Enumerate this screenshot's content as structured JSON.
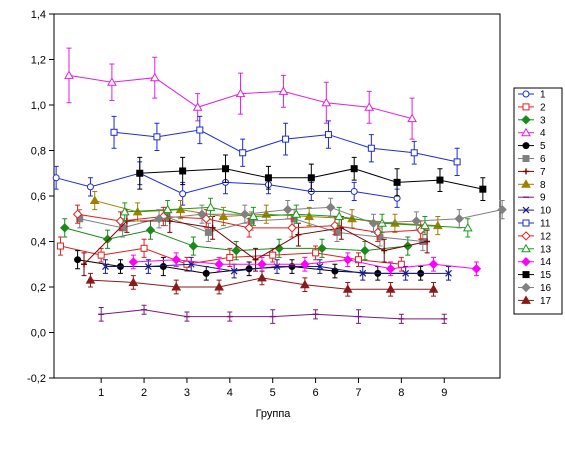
{
  "chart_data": {
    "type": "line",
    "title": "",
    "xlabel": "Группа",
    "ylabel": "",
    "xlim": [
      -0.1,
      10.3
    ],
    "ylim": [
      -0.2,
      1.4
    ],
    "xticks": [
      1,
      2,
      3,
      4,
      5,
      6,
      7,
      8,
      9
    ],
    "yticks": [
      -0.2,
      0.0,
      0.2,
      0.4,
      0.6,
      0.8,
      1.0,
      1.2,
      1.4
    ],
    "ytick_labels": [
      "-0,2",
      "0,0",
      "0,2",
      "0,4",
      "0,6",
      "0,8",
      "1,0",
      "1,2",
      "1,4"
    ],
    "grid": false,
    "error_bars": true,
    "legend_position": "right",
    "series": [
      {
        "name": "1",
        "color": "#1f2bd4",
        "marker": "circle-open",
        "x": [
          -0.05,
          0.75,
          1.9,
          2.9,
          3.9,
          4.9,
          5.9,
          6.9,
          7.9
        ],
        "y": [
          0.68,
          0.64,
          0.7,
          0.61,
          0.66,
          0.65,
          0.62,
          0.62,
          0.59
        ],
        "err": [
          0.05,
          0.04,
          0.05,
          0.05,
          0.05,
          0.04,
          0.04,
          0.04,
          0.04
        ]
      },
      {
        "name": "2",
        "color": "#e02020",
        "marker": "square-open",
        "x": [
          0.05,
          1.0,
          2.0,
          3.0,
          4.0,
          5.0,
          6.0,
          7.0,
          8.0
        ],
        "y": [
          0.38,
          0.34,
          0.37,
          0.3,
          0.33,
          0.34,
          0.35,
          0.32,
          0.3
        ],
        "err": [
          0.04,
          0.03,
          0.04,
          0.03,
          0.04,
          0.03,
          0.03,
          0.03,
          0.03
        ]
      },
      {
        "name": "3",
        "color": "#1a8a1a",
        "marker": "diamond",
        "x": [
          0.15,
          1.15,
          2.15,
          3.15,
          4.15,
          5.15,
          6.15,
          7.15,
          8.15
        ],
        "y": [
          0.46,
          0.41,
          0.45,
          0.38,
          0.36,
          0.37,
          0.37,
          0.36,
          0.38
        ],
        "err": [
          0.04,
          0.04,
          0.04,
          0.04,
          0.04,
          0.04,
          0.04,
          0.04,
          0.04
        ]
      },
      {
        "name": "4",
        "color": "#e020e0",
        "marker": "triangle-open",
        "x": [
          0.25,
          1.25,
          2.25,
          3.25,
          4.25,
          5.25,
          6.25,
          7.25,
          8.25
        ],
        "y": [
          1.13,
          1.1,
          1.12,
          0.99,
          1.05,
          1.06,
          1.01,
          0.99,
          0.94
        ],
        "err": [
          0.12,
          0.08,
          0.09,
          0.06,
          0.09,
          0.07,
          0.09,
          0.07,
          0.09
        ]
      },
      {
        "name": "5",
        "color": "#000000",
        "marker": "circle",
        "x": [
          0.45,
          1.45,
          2.45,
          3.45,
          4.45,
          5.45,
          6.45,
          7.45,
          8.45
        ],
        "y": [
          0.32,
          0.29,
          0.29,
          0.26,
          0.28,
          0.29,
          0.27,
          0.26,
          0.26
        ],
        "err": [
          0.04,
          0.03,
          0.04,
          0.03,
          0.03,
          0.03,
          0.03,
          0.03,
          0.03
        ]
      },
      {
        "name": "6",
        "color": "#808080",
        "marker": "square",
        "x": [
          0.5,
          1.5,
          2.5,
          3.5,
          4.5,
          5.5,
          6.5,
          7.5,
          8.5
        ],
        "y": [
          0.5,
          0.46,
          0.51,
          0.44,
          0.49,
          0.5,
          0.44,
          0.42,
          0.4
        ],
        "err": [
          0.04,
          0.04,
          0.04,
          0.04,
          0.04,
          0.04,
          0.04,
          0.04,
          0.04
        ]
      },
      {
        "name": "7",
        "color": "#7a0000",
        "marker": "cross",
        "x": [
          0.6,
          1.6,
          2.6,
          3.6,
          4.6,
          5.6,
          6.6,
          7.6,
          8.6
        ],
        "y": [
          0.3,
          0.49,
          0.49,
          0.46,
          0.32,
          0.43,
          0.46,
          0.36,
          0.4
        ],
        "err": [
          0.05,
          0.05,
          0.05,
          0.05,
          0.05,
          0.05,
          0.05,
          0.05,
          0.05
        ]
      },
      {
        "name": "8",
        "color": "#a08000",
        "marker": "triangle",
        "x": [
          0.85,
          1.85,
          2.85,
          3.85,
          4.85,
          5.85,
          6.85,
          7.85,
          8.85
        ],
        "y": [
          0.58,
          0.53,
          0.54,
          0.51,
          0.52,
          0.51,
          0.5,
          0.48,
          0.47
        ],
        "err": [
          0.04,
          0.04,
          0.04,
          0.04,
          0.04,
          0.04,
          0.04,
          0.04,
          0.04
        ]
      },
      {
        "name": "9",
        "color": "#7a1a7a",
        "marker": "dash",
        "x": [
          1.0,
          2.0,
          3.0,
          4.0,
          5.0,
          6.0,
          7.0,
          8.0,
          9.0
        ],
        "y": [
          0.08,
          0.1,
          0.07,
          0.07,
          0.07,
          0.08,
          0.07,
          0.06,
          0.06
        ],
        "err": [
          0.03,
          0.02,
          0.02,
          0.02,
          0.03,
          0.02,
          0.03,
          0.02,
          0.02
        ]
      },
      {
        "name": "10",
        "color": "#1a1a90",
        "marker": "x",
        "x": [
          1.1,
          2.1,
          3.1,
          4.1,
          5.1,
          6.1,
          7.1,
          8.1,
          9.1
        ],
        "y": [
          0.29,
          0.29,
          0.3,
          0.27,
          0.29,
          0.29,
          0.26,
          0.26,
          0.26
        ],
        "err": [
          0.03,
          0.03,
          0.03,
          0.03,
          0.03,
          0.03,
          0.03,
          0.03,
          0.03
        ]
      },
      {
        "name": "11",
        "color": "#1f2bd4",
        "marker": "square-open",
        "x": [
          1.3,
          2.3,
          3.3,
          4.3,
          5.3,
          6.3,
          7.3,
          8.3,
          9.3
        ],
        "y": [
          0.88,
          0.86,
          0.89,
          0.79,
          0.85,
          0.87,
          0.81,
          0.79,
          0.75
        ],
        "err": [
          0.07,
          0.06,
          0.06,
          0.06,
          0.07,
          0.06,
          0.06,
          0.05,
          0.06
        ]
      },
      {
        "name": "12",
        "color": "#e02020",
        "marker": "diamond-open",
        "x": [
          0.45,
          1.45,
          2.45,
          3.45,
          4.45,
          5.45,
          6.45,
          7.45,
          8.45
        ],
        "y": [
          0.52,
          0.49,
          0.51,
          0.5,
          0.46,
          0.46,
          0.47,
          0.44,
          0.45
        ],
        "err": [
          0.04,
          0.04,
          0.04,
          0.04,
          0.04,
          0.04,
          0.04,
          0.04,
          0.04
        ]
      },
      {
        "name": "13",
        "color": "#1a9a1a",
        "marker": "triangle-open",
        "x": [
          1.55,
          2.55,
          3.55,
          4.55,
          5.55,
          6.55,
          7.55,
          8.55,
          9.55
        ],
        "y": [
          0.53,
          0.54,
          0.55,
          0.51,
          0.52,
          0.51,
          0.48,
          0.47,
          0.46
        ],
        "err": [
          0.04,
          0.04,
          0.04,
          0.04,
          0.04,
          0.04,
          0.04,
          0.04,
          0.04
        ]
      },
      {
        "name": "14",
        "color": "#ff00ff",
        "marker": "diamond",
        "x": [
          1.75,
          2.75,
          3.75,
          4.75,
          5.75,
          6.75,
          7.75,
          8.75,
          9.75
        ],
        "y": [
          0.31,
          0.32,
          0.3,
          0.3,
          0.3,
          0.32,
          0.28,
          0.3,
          0.28
        ],
        "err": [
          0.03,
          0.03,
          0.03,
          0.03,
          0.03,
          0.03,
          0.03,
          0.03,
          0.03
        ]
      },
      {
        "name": "15",
        "color": "#000000",
        "marker": "square",
        "x": [
          1.9,
          2.9,
          3.9,
          4.9,
          5.9,
          6.9,
          7.9,
          8.9,
          9.9
        ],
        "y": [
          0.7,
          0.71,
          0.72,
          0.68,
          0.68,
          0.72,
          0.66,
          0.67,
          0.63
        ],
        "err": [
          0.07,
          0.06,
          0.06,
          0.05,
          0.06,
          0.05,
          0.06,
          0.05,
          0.05
        ]
      },
      {
        "name": "16",
        "color": "#808080",
        "marker": "diamond",
        "x": [
          2.35,
          3.35,
          4.35,
          5.35,
          6.35,
          7.35,
          8.35,
          9.35,
          10.35
        ],
        "y": [
          0.5,
          0.52,
          0.52,
          0.54,
          0.55,
          0.48,
          0.49,
          0.5,
          0.54
        ],
        "err": [
          0.04,
          0.04,
          0.04,
          0.04,
          0.04,
          0.04,
          0.04,
          0.04,
          0.04
        ]
      },
      {
        "name": "17",
        "color": "#8a1a1a",
        "marker": "triangle",
        "x": [
          0.75,
          1.75,
          2.75,
          3.75,
          4.75,
          5.75,
          6.75,
          7.75,
          8.75
        ],
        "y": [
          0.23,
          0.22,
          0.2,
          0.2,
          0.24,
          0.21,
          0.19,
          0.19,
          0.19
        ],
        "err": [
          0.03,
          0.03,
          0.03,
          0.03,
          0.03,
          0.03,
          0.03,
          0.03,
          0.03
        ]
      }
    ]
  }
}
